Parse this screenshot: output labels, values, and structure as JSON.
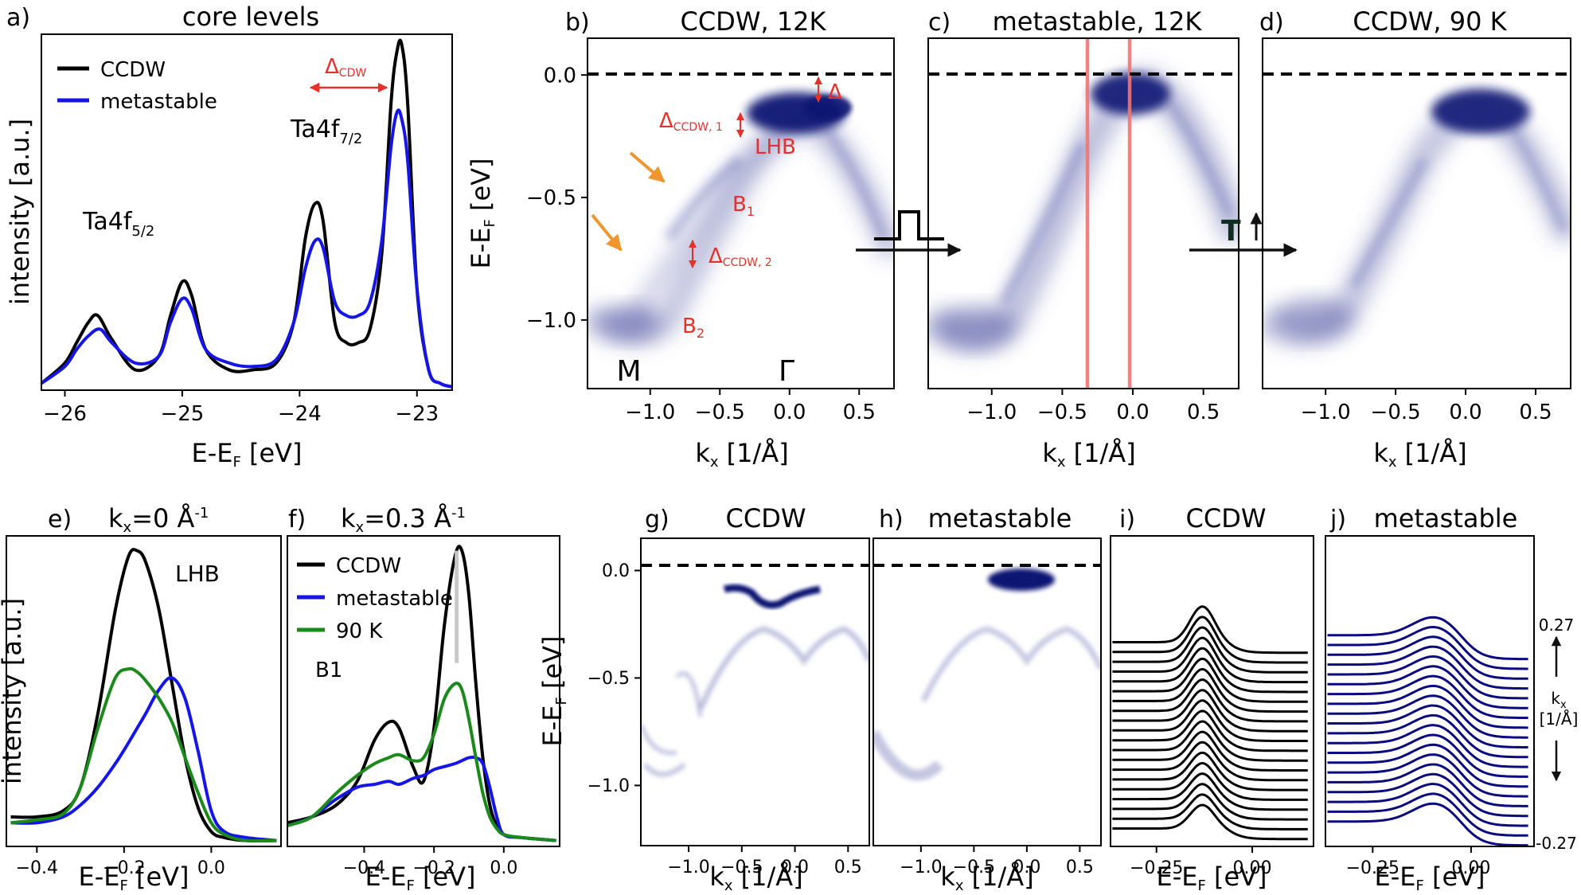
{
  "chart_data": [
    {
      "panel": "a",
      "type": "line",
      "title": "core levels",
      "xlabel": "E-E_F [eV]",
      "ylabel": "intensity [a.u.]",
      "xlim": [
        -26.2,
        -22.7
      ],
      "ylim": [
        0,
        1.05
      ],
      "xticks": [
        -26,
        -25,
        -24,
        -23
      ],
      "legend": [
        "CCDW",
        "metastable"
      ],
      "legend_position": "top-left",
      "annotations": {
        "peak1": "Ta4f5/2",
        "peak2": "Ta4f7/2",
        "gap": "ΔCDW"
      },
      "series": [
        {
          "name": "CCDW",
          "color": "#000000",
          "x": [
            -26.2,
            -26.0,
            -25.9,
            -25.8,
            -25.72,
            -25.6,
            -25.4,
            -25.2,
            -25.1,
            -25.0,
            -24.92,
            -24.8,
            -24.6,
            -24.4,
            -24.2,
            -24.05,
            -23.95,
            -23.87,
            -23.8,
            -23.7,
            -23.6,
            -23.5,
            -23.4,
            -23.3,
            -23.22,
            -23.17,
            -23.13,
            -23.08,
            -23.0,
            -22.9,
            -22.8,
            -22.7
          ],
          "values": [
            0.02,
            0.08,
            0.14,
            0.2,
            0.22,
            0.15,
            0.06,
            0.1,
            0.22,
            0.32,
            0.28,
            0.12,
            0.06,
            0.06,
            0.08,
            0.2,
            0.45,
            0.55,
            0.5,
            0.2,
            0.14,
            0.14,
            0.18,
            0.4,
            0.85,
            1.0,
            1.02,
            0.85,
            0.3,
            0.06,
            0.02,
            0.01
          ]
        },
        {
          "name": "metastable",
          "color": "#1515e8",
          "x": [
            -26.2,
            -26.0,
            -25.9,
            -25.8,
            -25.7,
            -25.6,
            -25.4,
            -25.2,
            -25.1,
            -25.0,
            -24.92,
            -24.8,
            -24.6,
            -24.4,
            -24.2,
            -24.05,
            -23.95,
            -23.87,
            -23.8,
            -23.7,
            -23.6,
            -23.5,
            -23.4,
            -23.3,
            -23.22,
            -23.17,
            -23.13,
            -23.08,
            -23.0,
            -22.9,
            -22.8,
            -22.7
          ],
          "values": [
            0.02,
            0.07,
            0.12,
            0.16,
            0.18,
            0.14,
            0.08,
            0.1,
            0.2,
            0.27,
            0.24,
            0.12,
            0.08,
            0.07,
            0.09,
            0.2,
            0.36,
            0.44,
            0.42,
            0.26,
            0.22,
            0.22,
            0.26,
            0.44,
            0.72,
            0.82,
            0.8,
            0.68,
            0.3,
            0.06,
            0.02,
            0.01
          ]
        }
      ]
    },
    {
      "panel": "b",
      "type": "heatmap",
      "title": "CCDW, 12K",
      "xlabel": "k_x [1/Å]",
      "ylabel": "E-E_F [eV]",
      "xlim": [
        -1.45,
        0.75
      ],
      "ylim": [
        -1.28,
        0.15
      ],
      "xticks": [
        -1.0,
        -0.5,
        0.0,
        0.5
      ],
      "yticks": [
        0.0,
        -0.5,
        -1.0
      ],
      "fermi_level_line": 0.0,
      "labels": [
        "Δ",
        "ΔCCDW, 1",
        "LHB",
        "B1",
        "ΔCCDW, 2",
        "B2",
        "M",
        "Γ"
      ]
    },
    {
      "panel": "c",
      "type": "heatmap",
      "title": "metastable, 12K",
      "xlabel": "k_x [1/Å]",
      "xlim": [
        -1.45,
        0.75
      ],
      "xticks": [
        -1.0,
        -0.5,
        0.0,
        0.5
      ],
      "fermi_level_line": 0.0,
      "vertical_markers": [
        -0.3,
        0.0
      ]
    },
    {
      "panel": "d",
      "type": "heatmap",
      "title": "CCDW, 90 K",
      "xlabel": "k_x [1/Å]",
      "xlim": [
        -1.45,
        0.75
      ],
      "xticks": [
        -1.0,
        -0.5,
        0.0,
        0.5
      ],
      "fermi_level_line": 0.0,
      "arrow_label": "T"
    },
    {
      "panel": "e",
      "type": "line",
      "title": "k_x=0 Å^-1",
      "xlabel": "E-E_F [eV]",
      "ylabel": "intensity [a.u.]",
      "xlim": [
        -0.47,
        0.16
      ],
      "ylim": [
        0,
        1.05
      ],
      "xticks": [
        -0.4,
        -0.2,
        0.0
      ],
      "annotations": {
        "peak": "LHB"
      },
      "series": [
        {
          "name": "CCDW",
          "color": "#000000",
          "x": [
            -0.46,
            -0.4,
            -0.34,
            -0.3,
            -0.26,
            -0.22,
            -0.19,
            -0.17,
            -0.15,
            -0.12,
            -0.09,
            -0.06,
            -0.03,
            0.0,
            0.03,
            0.08,
            0.15
          ],
          "values": [
            0.1,
            0.1,
            0.12,
            0.2,
            0.45,
            0.8,
            0.98,
            1.0,
            0.96,
            0.8,
            0.55,
            0.3,
            0.13,
            0.05,
            0.03,
            0.02,
            0.02
          ]
        },
        {
          "name": "metastable",
          "color": "#1515e8",
          "x": [
            -0.46,
            -0.4,
            -0.34,
            -0.3,
            -0.26,
            -0.22,
            -0.19,
            -0.17,
            -0.15,
            -0.12,
            -0.09,
            -0.06,
            -0.03,
            0.0,
            0.03,
            0.08,
            0.15
          ],
          "values": [
            0.08,
            0.08,
            0.1,
            0.14,
            0.2,
            0.28,
            0.35,
            0.4,
            0.45,
            0.53,
            0.57,
            0.5,
            0.32,
            0.12,
            0.05,
            0.03,
            0.02
          ]
        },
        {
          "name": "90 K",
          "color": "#1a8a1a",
          "x": [
            -0.46,
            -0.4,
            -0.34,
            -0.3,
            -0.26,
            -0.22,
            -0.19,
            -0.17,
            -0.15,
            -0.12,
            -0.09,
            -0.06,
            -0.03,
            0.0,
            0.03,
            0.08,
            0.15
          ],
          "values": [
            0.08,
            0.09,
            0.11,
            0.2,
            0.4,
            0.57,
            0.6,
            0.59,
            0.56,
            0.5,
            0.42,
            0.3,
            0.18,
            0.08,
            0.04,
            0.02,
            0.02
          ]
        }
      ]
    },
    {
      "panel": "f",
      "type": "line",
      "title": "k_x=0.3 Å^-1",
      "xlabel": "E-E_F [eV]",
      "xlim": [
        -0.62,
        0.16
      ],
      "ylim": [
        0,
        1.05
      ],
      "xticks": [
        -0.4,
        -0.2,
        0.0
      ],
      "legend": [
        "CCDW",
        "metastable",
        "90 K"
      ],
      "legend_position": "top-left",
      "annotations": {
        "peak": "B1"
      },
      "series": [
        {
          "name": "CCDW",
          "color": "#000000",
          "x": [
            -0.62,
            -0.55,
            -0.48,
            -0.42,
            -0.37,
            -0.33,
            -0.3,
            -0.26,
            -0.23,
            -0.2,
            -0.17,
            -0.14,
            -0.12,
            -0.1,
            -0.08,
            -0.06,
            -0.04,
            -0.02,
            0.0,
            0.05,
            0.15
          ],
          "values": [
            0.08,
            0.1,
            0.14,
            0.22,
            0.36,
            0.42,
            0.4,
            0.27,
            0.22,
            0.4,
            0.75,
            0.98,
            1.0,
            0.85,
            0.55,
            0.3,
            0.14,
            0.07,
            0.04,
            0.03,
            0.02
          ]
        },
        {
          "name": "metastable",
          "color": "#1515e8",
          "x": [
            -0.62,
            -0.55,
            -0.48,
            -0.42,
            -0.37,
            -0.33,
            -0.3,
            -0.26,
            -0.23,
            -0.2,
            -0.17,
            -0.14,
            -0.12,
            -0.1,
            -0.08,
            -0.06,
            -0.04,
            -0.02,
            0.0,
            0.05,
            0.15
          ],
          "values": [
            0.07,
            0.1,
            0.16,
            0.2,
            0.21,
            0.22,
            0.21,
            0.23,
            0.24,
            0.26,
            0.27,
            0.28,
            0.29,
            0.3,
            0.3,
            0.28,
            0.2,
            0.1,
            0.04,
            0.03,
            0.02
          ]
        },
        {
          "name": "90 K",
          "color": "#1a8a1a",
          "x": [
            -0.62,
            -0.55,
            -0.48,
            -0.42,
            -0.37,
            -0.33,
            -0.3,
            -0.26,
            -0.23,
            -0.2,
            -0.17,
            -0.14,
            -0.12,
            -0.1,
            -0.08,
            -0.06,
            -0.04,
            -0.02,
            0.0,
            0.05,
            0.15
          ],
          "values": [
            0.07,
            0.1,
            0.18,
            0.24,
            0.28,
            0.3,
            0.31,
            0.29,
            0.3,
            0.38,
            0.5,
            0.55,
            0.53,
            0.43,
            0.3,
            0.18,
            0.1,
            0.06,
            0.04,
            0.03,
            0.02
          ]
        }
      ]
    },
    {
      "panel": "g",
      "type": "heatmap",
      "title": "CCDW",
      "xlabel": "k_x [1/Å]",
      "ylabel": "E-E_F [eV]",
      "xlim": [
        -1.45,
        0.7
      ],
      "ylim": [
        -1.28,
        0.15
      ],
      "xticks": [
        -1.0,
        -0.5,
        0.0,
        0.5
      ],
      "yticks": [
        0.0,
        -0.5,
        -1.0
      ],
      "fermi_level_line": 0.0
    },
    {
      "panel": "h",
      "type": "heatmap",
      "title": "metastable",
      "xlabel": "k_x [1/Å]",
      "xlim": [
        -1.45,
        0.7
      ],
      "xticks": [
        -1.0,
        -0.5,
        0.0,
        0.5
      ],
      "fermi_level_line": 0.0
    },
    {
      "panel": "i",
      "type": "line",
      "title": "CCDW",
      "xlabel": "E-E_F [eV]",
      "xlim": [
        -0.37,
        0.16
      ],
      "xticks": [
        -0.25,
        0.0
      ],
      "series_count": 20,
      "peak_energy": -0.13,
      "color": "#000000"
    },
    {
      "panel": "j",
      "type": "line",
      "title": "metastable",
      "xlabel": "E-E_F [eV]",
      "xlim": [
        -0.37,
        0.16
      ],
      "xticks": [
        -0.25,
        0.0
      ],
      "series_count": 20,
      "color": "#0a0a7e",
      "side_axis": {
        "top": "0.27",
        "bottom": "-0.27",
        "label_line1": "k_x",
        "label_line2": "[1/Å]"
      }
    }
  ],
  "text": {
    "a_letter": "a)",
    "a_title": "core levels",
    "a_ylabel": "intensity [a.u.]",
    "a_xlabel": "E-E",
    "F": "F",
    "a_xlabel_unit": " [eV]",
    "a_leg1": "CCDW",
    "a_leg2": "metastable",
    "a_delta": "Δ",
    "a_delta_sub": "CDW",
    "ta": "Ta4f",
    "ta_sub1": "5/2",
    "ta_sub2": "7/2",
    "b_letter": "b)",
    "b_title": "CCDW, 12K",
    "c_letter": "c)",
    "c_title": "metastable, 12K",
    "d_letter": "d)",
    "d_title": "CCDW, 90 K",
    "ylabel_E": "E-E",
    "ylabel_unit": " [eV]",
    "kx_k": "k",
    "kx_x": "x",
    "kx_unit": " [1/Å]",
    "b_delta": "Δ",
    "b_delta1_sub": "CCDW, 1",
    "b_delta2_sub": "CCDW, 2",
    "b_lhb": "LHB",
    "b_B": "B",
    "b_B1_sub": "1",
    "b_B2_sub": "2",
    "b_M": "M",
    "b_Gamma": "Γ",
    "d_T": "T",
    "e_letter": "e)",
    "e_title_k": "k",
    "e_title_sub": "x",
    "e_title_val": "=0 Å",
    "e_title_sup": "-1",
    "e_ylabel": "intensity [a.u.]",
    "e_lhb": "LHB",
    "f_letter": "f)",
    "f_title_val": "=0.3 Å",
    "f_b1": "B1",
    "f_leg1": "CCDW",
    "f_leg2": "metastable",
    "f_leg3": "90 K",
    "g_letter": "g)",
    "g_title": "CCDW",
    "h_letter": "h)",
    "h_title": "metastable",
    "i_letter": "i)",
    "i_title": "CCDW",
    "j_letter": "j)",
    "j_title": "metastable",
    "j_top": "0.27",
    "j_bottom": "-0.27",
    "j_klabel": "k",
    "j_kunit": "[1/Å]"
  }
}
